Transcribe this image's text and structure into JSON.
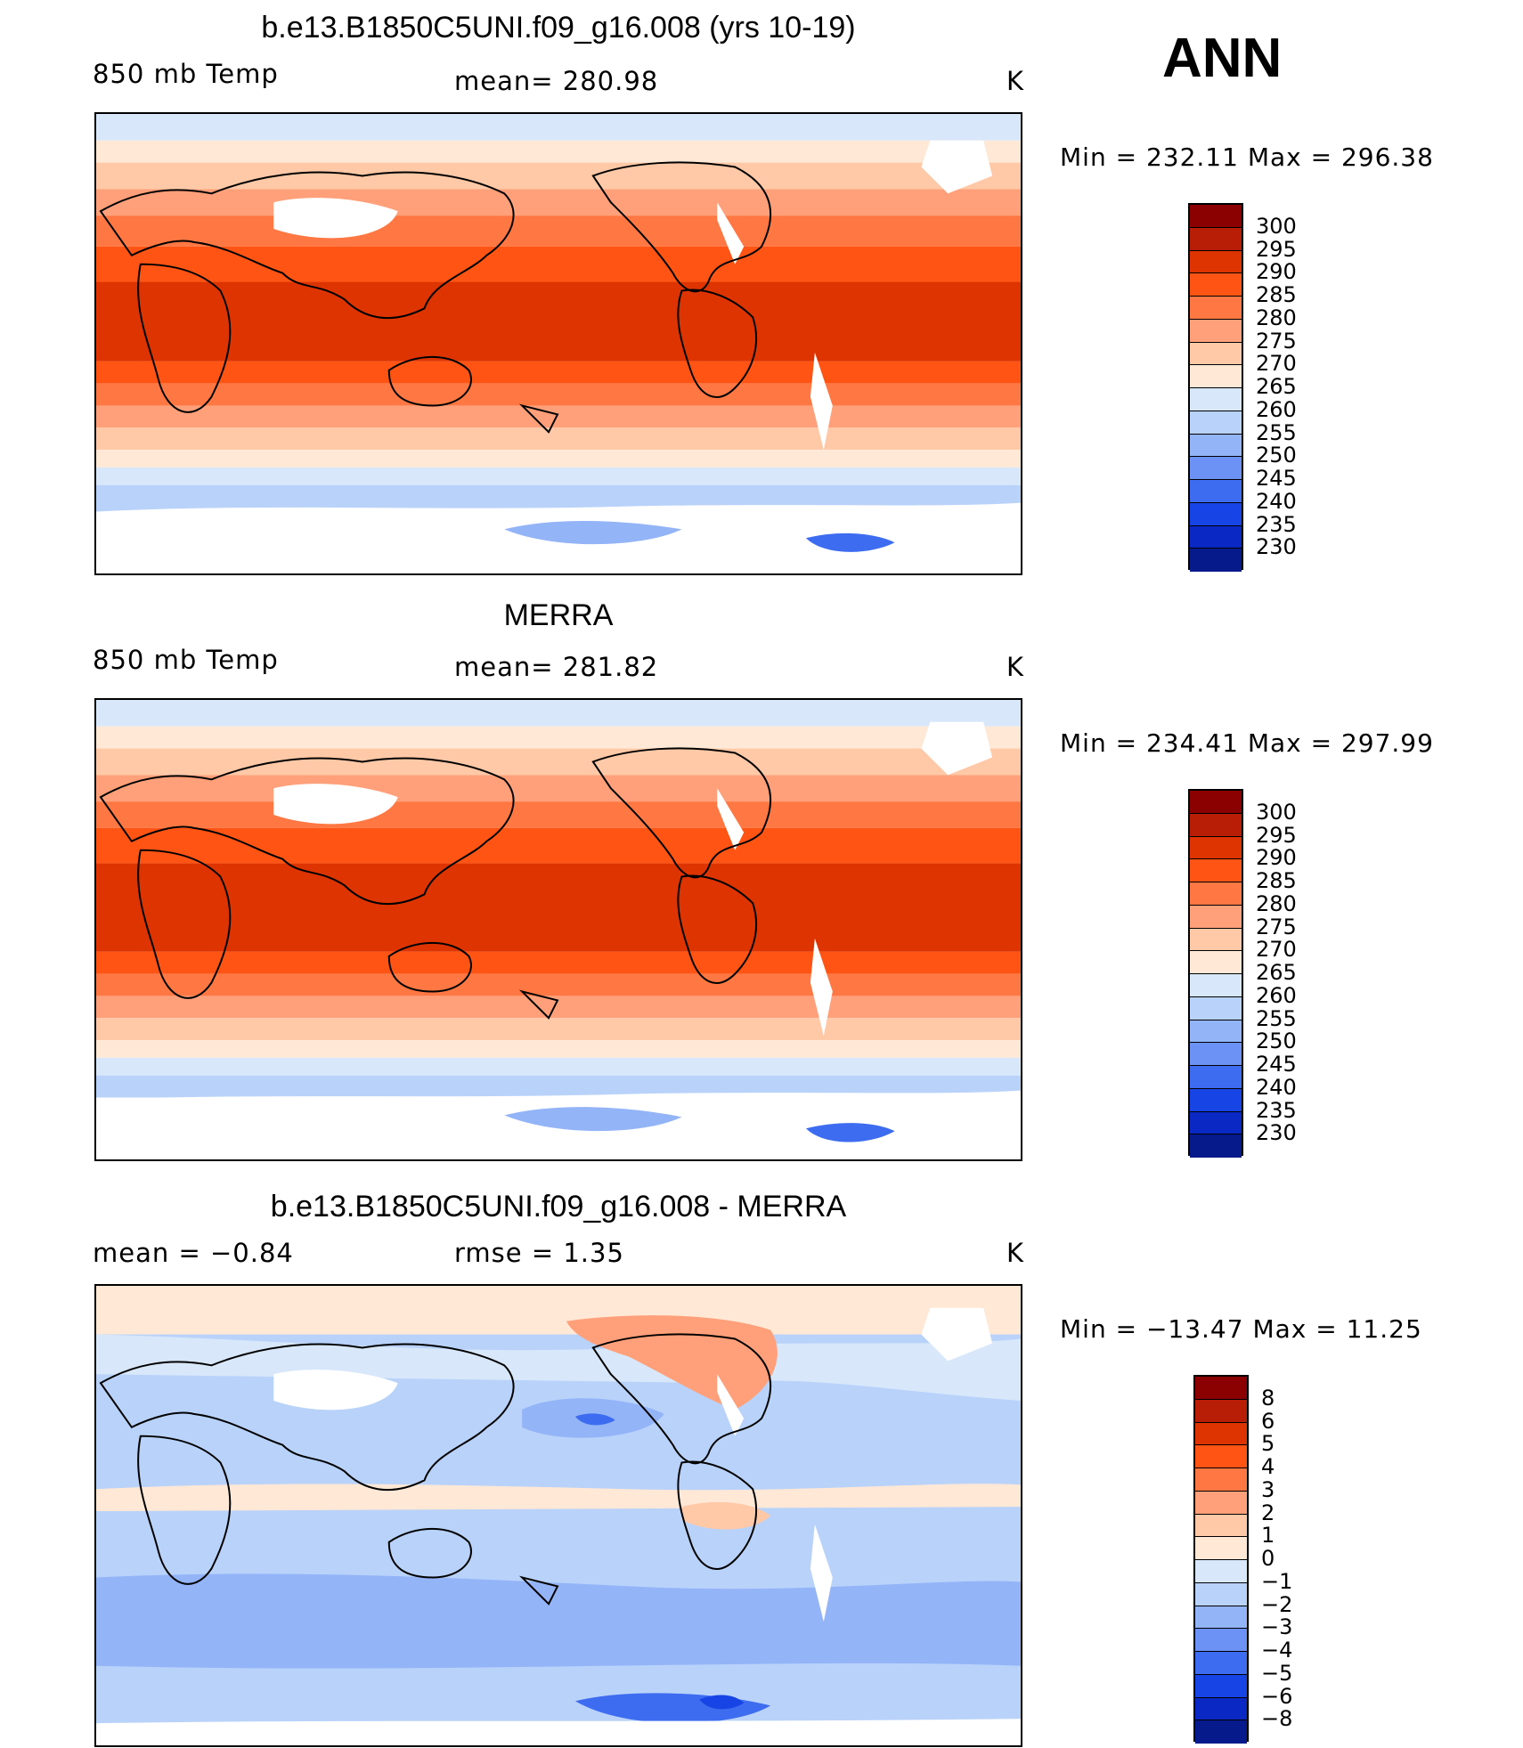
{
  "season": "ANN",
  "units": "K",
  "panels": [
    {
      "title": "b.e13.B1850C5UNI.f09_g16.008 (yrs 10-19)",
      "left_label": "850 mb Temp",
      "center_label": "mean= 280.98",
      "right_label": "K",
      "minmax": "Min = 232.11 Max = 296.38",
      "levels": [
        "300",
        "295",
        "290",
        "285",
        "280",
        "275",
        "270",
        "265",
        "260",
        "255",
        "250",
        "245",
        "240",
        "235",
        "230"
      ],
      "colors": [
        "#8b0000",
        "#b81d05",
        "#dd3402",
        "#ff5413",
        "#ff7843",
        "#ffa07a",
        "#ffc8a6",
        "#ffe8d6",
        "#d8e8fa",
        "#b8d2fa",
        "#94b4f8",
        "#6c92f5",
        "#3d6cf0",
        "#1744e4",
        "#0a28c4",
        "#061a8c"
      ]
    },
    {
      "title": "MERRA",
      "left_label": "850 mb Temp",
      "center_label": "mean= 281.82",
      "right_label": "K",
      "minmax": "Min = 234.41 Max = 297.99",
      "levels": [
        "300",
        "295",
        "290",
        "285",
        "280",
        "275",
        "270",
        "265",
        "260",
        "255",
        "250",
        "245",
        "240",
        "235",
        "230"
      ],
      "colors": [
        "#8b0000",
        "#b81d05",
        "#dd3402",
        "#ff5413",
        "#ff7843",
        "#ffa07a",
        "#ffc8a6",
        "#ffe8d6",
        "#d8e8fa",
        "#b8d2fa",
        "#94b4f8",
        "#6c92f5",
        "#3d6cf0",
        "#1744e4",
        "#0a28c4",
        "#061a8c"
      ]
    },
    {
      "title": "b.e13.B1850C5UNI.f09_g16.008 - MERRA",
      "left_label": "mean =   −0.84",
      "center_label": "rmse =    1.35",
      "right_label": "K",
      "minmax": "Min = −13.47 Max =   11.25",
      "levels": [
        "8",
        "6",
        "5",
        "4",
        "3",
        "2",
        "1",
        "0",
        "−1",
        "−2",
        "−3",
        "−4",
        "−5",
        "−6",
        "−8"
      ],
      "colors": [
        "#8b0000",
        "#b81d05",
        "#dd3402",
        "#ff5413",
        "#ff7843",
        "#ffa07a",
        "#ffc8a6",
        "#ffe8d6",
        "#d8e8fa",
        "#b8d2fa",
        "#94b4f8",
        "#6c92f5",
        "#3d6cf0",
        "#1744e4",
        "#0a28c4",
        "#061a8c"
      ]
    }
  ]
}
